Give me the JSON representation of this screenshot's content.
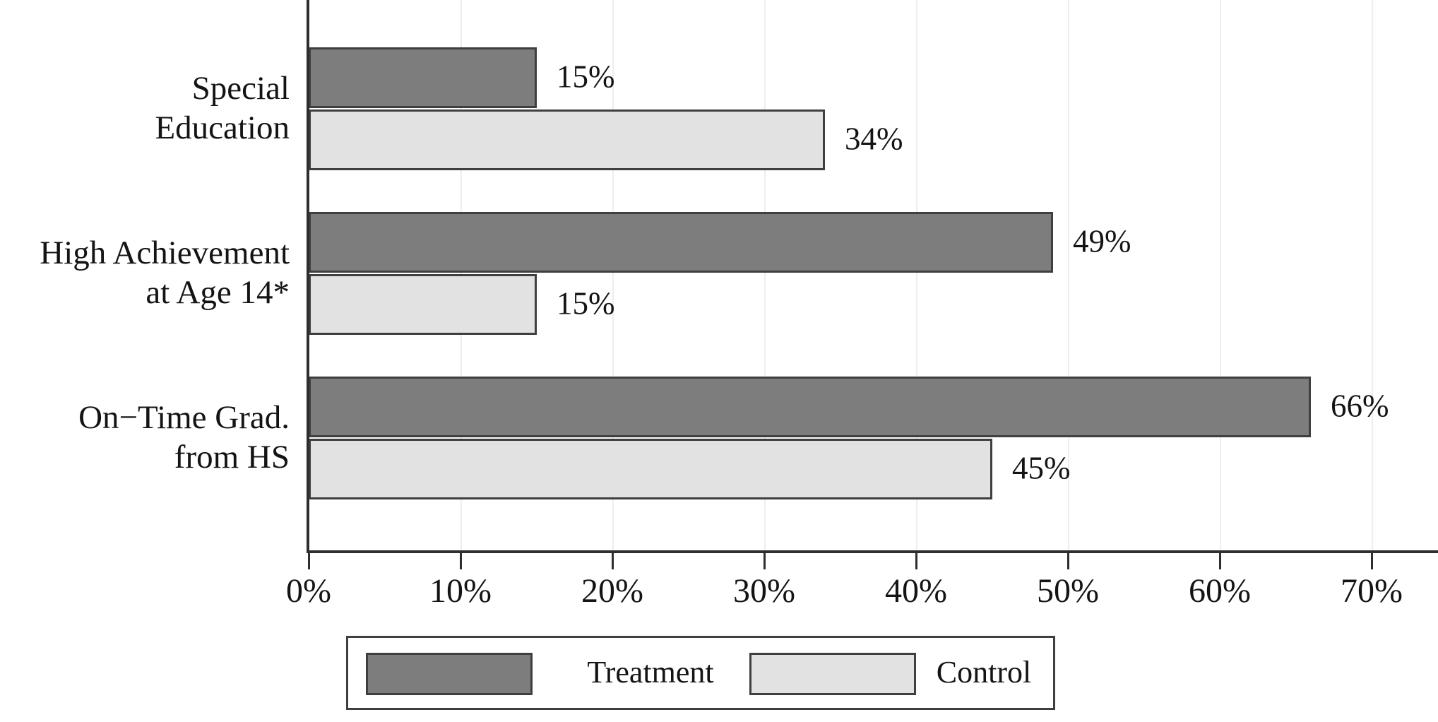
{
  "chart_data": {
    "type": "bar",
    "orientation": "horizontal",
    "title": "",
    "categories": [
      "Special Education",
      "High Achievement at Age 14*",
      "On−Time Grad. from HS"
    ],
    "category_lines": [
      [
        "Special",
        "Education"
      ],
      [
        "High Achievement",
        "at Age 14*"
      ],
      [
        "On−Time Grad.",
        "from HS"
      ]
    ],
    "series": [
      {
        "name": "Treatment",
        "values": [
          15,
          49,
          66
        ],
        "data_labels": [
          "15%",
          "49%",
          "66%"
        ]
      },
      {
        "name": "Control",
        "values": [
          34,
          15,
          45
        ],
        "data_labels": [
          "34%",
          "15%",
          "45%"
        ]
      }
    ],
    "xlim": [
      0,
      70
    ],
    "x_tick_values": [
      0,
      10,
      20,
      30,
      40,
      50,
      60,
      70
    ],
    "x_tick_labels": [
      "0%",
      "10%",
      "20%",
      "30%",
      "40%",
      "50%",
      "60%",
      "70%"
    ],
    "grid": "vertical-light",
    "legend_position": "bottom-center"
  },
  "legend": {
    "items": [
      {
        "label": "Treatment"
      },
      {
        "label": "Control"
      }
    ]
  },
  "colors": {
    "treatment_fill": "#7d7d7d",
    "control_fill": "#e2e2e2",
    "bar_border": "#3f3f3f",
    "axis": "#2e2e2e",
    "gridline": "#eeeeee",
    "text": "#141414",
    "background": "#ffffff"
  }
}
